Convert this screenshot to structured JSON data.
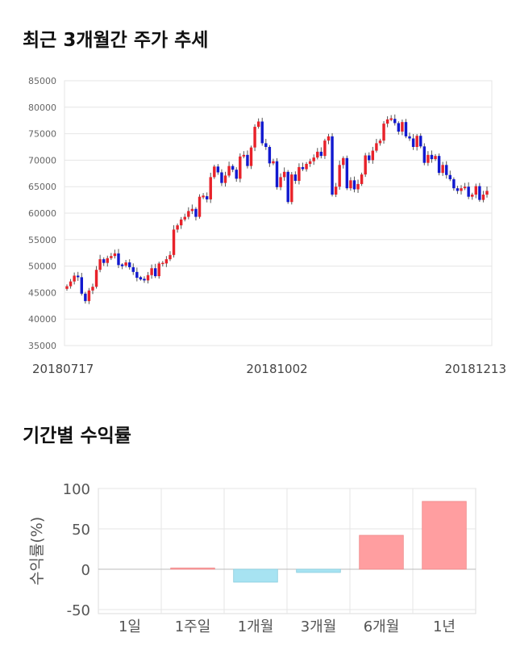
{
  "sections": {
    "price_title": "최근 3개월간 주가 추세",
    "return_title": "기간별 수익률"
  },
  "colors": {
    "up": "#e8222a",
    "down": "#1119cf",
    "gain_bar": "#ff9ea0",
    "loss_bar": "#a7e3f2"
  },
  "chart_data": [
    {
      "type": "candlestick",
      "title": "최근 3개월간 주가 추세",
      "xlabel": "",
      "ylabel": "",
      "ylim": [
        35000,
        85000
      ],
      "yticks": [
        35000,
        40000,
        45000,
        50000,
        55000,
        60000,
        65000,
        70000,
        75000,
        80000,
        85000
      ],
      "x_tick_labels": [
        "20180717",
        "20181002",
        "20181213"
      ],
      "grid": true,
      "close": [
        46200,
        47100,
        48200,
        47900,
        44800,
        43400,
        45400,
        46100,
        49300,
        51300,
        50600,
        51500,
        51900,
        52400,
        50200,
        50100,
        50700,
        49800,
        48900,
        47800,
        47600,
        47300,
        48300,
        49600,
        48100,
        50500,
        50500,
        51300,
        52100,
        56900,
        57700,
        58800,
        59300,
        60400,
        60800,
        59300,
        63100,
        63200,
        62600,
        66800,
        68800,
        67700,
        65700,
        67100,
        68900,
        68200,
        66500,
        70700,
        71000,
        68900,
        72400,
        76300,
        77300,
        73200,
        72500,
        69400,
        69800,
        64900,
        66800,
        67800,
        62100,
        67300,
        66100,
        68700,
        68300,
        69300,
        69800,
        70500,
        71600,
        70800,
        73700,
        74500,
        63500,
        65000,
        69100,
        70400,
        64700,
        66200,
        64500,
        65500,
        67300,
        70900,
        70000,
        71800,
        73200,
        73700,
        76900,
        77700,
        77800,
        77000,
        75400,
        77200,
        74500,
        74100,
        72500,
        74600,
        72600,
        69500,
        71000,
        70200,
        70800,
        67600,
        69100,
        67200,
        66400,
        64700,
        64200,
        64700,
        65000,
        63100,
        63500,
        65100,
        62500,
        63500,
        64200
      ]
    },
    {
      "type": "bar",
      "title": "기간별 수익률",
      "ylabel": "수익률(%)",
      "xlabel": "",
      "ylim": [
        -55,
        100
      ],
      "yticks": [
        -50,
        0,
        50,
        100
      ],
      "categories": [
        "1일",
        "1주일",
        "1개월",
        "3개월",
        "6개월",
        "1년"
      ],
      "values": [
        0,
        1.5,
        -16,
        -4,
        42,
        84
      ],
      "grid": true
    }
  ]
}
